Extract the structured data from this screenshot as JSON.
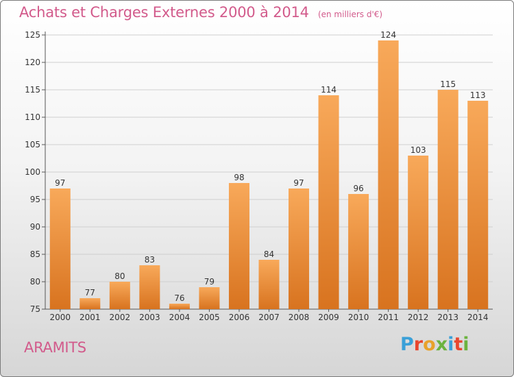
{
  "header": {
    "title": "Achats et Charges Externes 2000 à 2014",
    "subtitle": "(en milliers d'€)"
  },
  "footer": {
    "commune": "ARAMITS",
    "logo_text": "Proxiti"
  },
  "colors": {
    "title": "#d25a8b",
    "bar_light": "#f8a95a",
    "bar_dark": "#d8731f",
    "logo": [
      "#3aa0d8",
      "#e8462e",
      "#e8a22a",
      "#6bb33e",
      "#3aa0d8",
      "#e8462e",
      "#6bb33e"
    ]
  },
  "chart_data": {
    "type": "bar",
    "title": "Achats et Charges Externes 2000 à 2014",
    "subtitle": "(en milliers d'€)",
    "categories": [
      "2000",
      "2001",
      "2002",
      "2003",
      "2004",
      "2005",
      "2006",
      "2007",
      "2008",
      "2009",
      "2010",
      "2011",
      "2012",
      "2013",
      "2014"
    ],
    "values": [
      97,
      77,
      80,
      83,
      76,
      79,
      98,
      84,
      97,
      114,
      96,
      124,
      103,
      115,
      113
    ],
    "ylim": [
      75,
      125
    ],
    "yticks": [
      75,
      80,
      85,
      90,
      95,
      100,
      105,
      110,
      115,
      120,
      125
    ],
    "grid": true,
    "data_labels": true
  }
}
